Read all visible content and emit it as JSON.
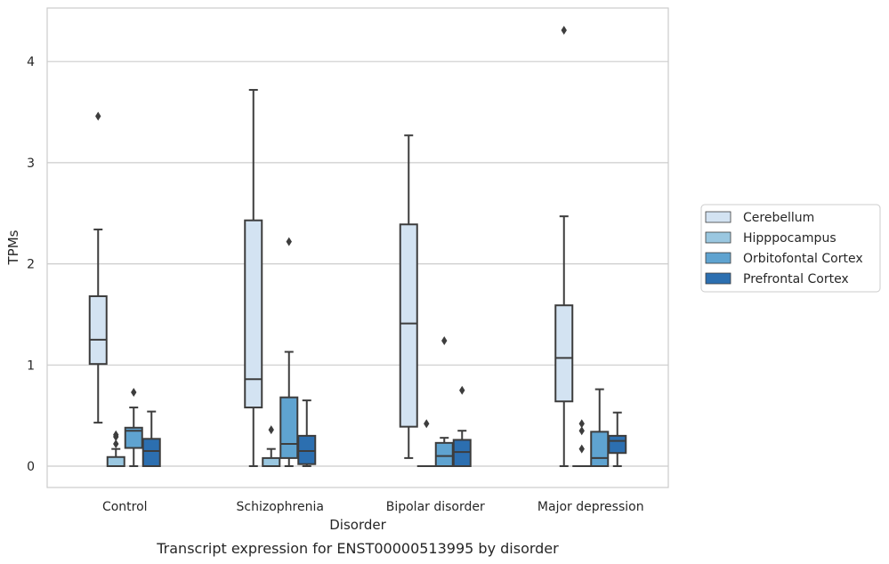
{
  "chart_data": {
    "type": "boxplot",
    "title": "",
    "caption": "Transcript expression for ENST00000513995 by disorder",
    "xlabel": "Disorder",
    "ylabel": "TPMs",
    "ylim": [
      -0.2,
      4.55
    ],
    "yticks": [
      0,
      1,
      2,
      3,
      4
    ],
    "grid": true,
    "legend_position": "right",
    "categories": [
      "Control",
      "Schizophrenia",
      "Bipolar disorder",
      "Major depression"
    ],
    "series": [
      {
        "name": "Cerebellum",
        "color": "#d3e3f2",
        "boxes": [
          {
            "min": 0.43,
            "q1": 1.01,
            "median": 1.25,
            "q3": 1.68,
            "max": 2.34,
            "outliers": [
              3.46
            ]
          },
          {
            "min": 0.0,
            "q1": 0.58,
            "median": 0.86,
            "q3": 2.43,
            "max": 3.72,
            "outliers": []
          },
          {
            "min": 0.08,
            "q1": 0.39,
            "median": 1.41,
            "q3": 2.39,
            "max": 3.27,
            "outliers": []
          },
          {
            "min": 0.0,
            "q1": 0.64,
            "median": 1.07,
            "q3": 1.59,
            "max": 2.47,
            "outliers": [
              4.31
            ]
          }
        ]
      },
      {
        "name": "Hipppocampus",
        "color": "#9ac7e0",
        "boxes": [
          {
            "min": 0.0,
            "q1": 0.0,
            "median": 0.0,
            "q3": 0.09,
            "max": 0.17,
            "outliers": [
              0.22,
              0.29,
              0.31
            ]
          },
          {
            "min": 0.0,
            "q1": 0.0,
            "median": 0.0,
            "q3": 0.08,
            "max": 0.17,
            "outliers": [
              0.36
            ]
          },
          {
            "min": 0.0,
            "q1": 0.0,
            "median": 0.0,
            "q3": 0.0,
            "max": 0.0,
            "outliers": [
              0.42
            ]
          },
          {
            "min": 0.0,
            "q1": 0.0,
            "median": 0.0,
            "q3": 0.0,
            "max": 0.0,
            "outliers": [
              0.17,
              0.35,
              0.42
            ]
          }
        ]
      },
      {
        "name": "Orbitofontal Cortex",
        "color": "#5fa3d0",
        "boxes": [
          {
            "min": 0.0,
            "q1": 0.18,
            "median": 0.35,
            "q3": 0.38,
            "max": 0.58,
            "outliers": [
              0.73
            ]
          },
          {
            "min": 0.0,
            "q1": 0.08,
            "median": 0.22,
            "q3": 0.68,
            "max": 1.13,
            "outliers": [
              2.22
            ]
          },
          {
            "min": 0.0,
            "q1": 0.0,
            "median": 0.1,
            "q3": 0.23,
            "max": 0.28,
            "outliers": [
              1.24
            ]
          },
          {
            "min": 0.0,
            "q1": 0.0,
            "median": 0.08,
            "q3": 0.34,
            "max": 0.76,
            "outliers": []
          }
        ]
      },
      {
        "name": "Prefrontal Cortex",
        "color": "#2c6fb0",
        "boxes": [
          {
            "min": 0.0,
            "q1": 0.0,
            "median": 0.15,
            "q3": 0.27,
            "max": 0.54,
            "outliers": []
          },
          {
            "min": 0.0,
            "q1": 0.02,
            "median": 0.15,
            "q3": 0.3,
            "max": 0.65,
            "outliers": []
          },
          {
            "min": 0.0,
            "q1": 0.0,
            "median": 0.14,
            "q3": 0.26,
            "max": 0.35,
            "outliers": [
              0.75
            ]
          },
          {
            "min": 0.0,
            "q1": 0.13,
            "median": 0.25,
            "q3": 0.3,
            "max": 0.53,
            "outliers": []
          }
        ]
      }
    ]
  }
}
